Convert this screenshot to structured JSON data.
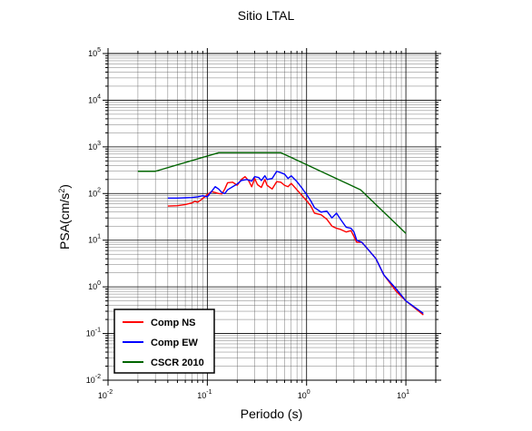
{
  "chart_data": {
    "type": "line",
    "title": "Sitio LTAL",
    "xlabel": "Periodo (s)",
    "ylabel_main": "PSA(cm/s",
    "ylabel_sup": "2",
    "ylabel_end": ")",
    "xscale": "log",
    "yscale": "log",
    "xlim": [
      0.01,
      20
    ],
    "ylim": [
      0.01,
      100000
    ],
    "grid": true,
    "legend_position": "bottom-left",
    "x_ticks": [
      {
        "base": "10",
        "exp": "-2",
        "value": 0.01
      },
      {
        "base": "10",
        "exp": "-1",
        "value": 0.1
      },
      {
        "base": "10",
        "exp": "0",
        "value": 1
      },
      {
        "base": "10",
        "exp": "1",
        "value": 10
      }
    ],
    "y_ticks": [
      {
        "base": "10",
        "exp": "-2",
        "value": 0.01
      },
      {
        "base": "10",
        "exp": "-1",
        "value": 0.1
      },
      {
        "base": "10",
        "exp": "0",
        "value": 1
      },
      {
        "base": "10",
        "exp": "1",
        "value": 10
      },
      {
        "base": "10",
        "exp": "2",
        "value": 100
      },
      {
        "base": "10",
        "exp": "3",
        "value": 1000
      },
      {
        "base": "10",
        "exp": "4",
        "value": 10000
      },
      {
        "base": "10",
        "exp": "5",
        "value": 100000
      }
    ],
    "series": [
      {
        "name": "Comp NS",
        "color": "#ff0000",
        "x": [
          0.04,
          0.05,
          0.06,
          0.07,
          0.075,
          0.08,
          0.09,
          0.1,
          0.11,
          0.12,
          0.13,
          0.14,
          0.15,
          0.16,
          0.18,
          0.2,
          0.22,
          0.24,
          0.26,
          0.28,
          0.3,
          0.32,
          0.35,
          0.38,
          0.4,
          0.45,
          0.5,
          0.55,
          0.6,
          0.65,
          0.7,
          0.8,
          0.9,
          1.0,
          1.1,
          1.2,
          1.4,
          1.6,
          1.8,
          2.0,
          2.2,
          2.5,
          2.8,
          3.0,
          3.2,
          3.6,
          4.0,
          5.0,
          6.0,
          8.0,
          10.0,
          15.0
        ],
        "y": [
          54,
          55,
          58,
          63,
          68,
          65,
          78,
          95,
          110,
          105,
          100,
          98,
          125,
          170,
          175,
          150,
          200,
          230,
          190,
          140,
          210,
          155,
          135,
          200,
          150,
          125,
          180,
          175,
          150,
          140,
          165,
          120,
          90,
          70,
          55,
          38,
          35,
          28,
          20,
          18,
          17,
          15,
          16,
          12,
          9,
          9,
          7,
          4,
          1.8,
          0.8,
          0.5,
          0.25
        ]
      },
      {
        "name": "Comp EW",
        "color": "#0000ff",
        "x": [
          0.04,
          0.05,
          0.06,
          0.07,
          0.08,
          0.09,
          0.1,
          0.11,
          0.12,
          0.13,
          0.14,
          0.15,
          0.16,
          0.18,
          0.2,
          0.22,
          0.25,
          0.28,
          0.3,
          0.33,
          0.35,
          0.38,
          0.4,
          0.45,
          0.5,
          0.55,
          0.6,
          0.65,
          0.7,
          0.8,
          0.9,
          1.0,
          1.1,
          1.2,
          1.4,
          1.6,
          1.8,
          2.0,
          2.2,
          2.5,
          2.8,
          3.0,
          3.2,
          3.6,
          4.0,
          5.0,
          6.0,
          8.0,
          10.0,
          15.0
        ],
        "y": [
          80,
          80,
          81,
          82,
          85,
          90,
          85,
          110,
          140,
          125,
          105,
          100,
          120,
          140,
          160,
          190,
          200,
          185,
          230,
          220,
          190,
          240,
          200,
          210,
          300,
          280,
          260,
          210,
          240,
          180,
          130,
          95,
          70,
          50,
          40,
          42,
          30,
          38,
          28,
          19,
          18,
          15,
          10,
          9,
          7,
          4,
          1.8,
          0.9,
          0.5,
          0.27
        ]
      },
      {
        "name": "CSCR 2010",
        "color": "#006400",
        "x": [
          0.02,
          0.03,
          0.13,
          0.55,
          3.5,
          10
        ],
        "y": [
          300,
          300,
          750,
          750,
          120,
          14
        ]
      }
    ]
  }
}
